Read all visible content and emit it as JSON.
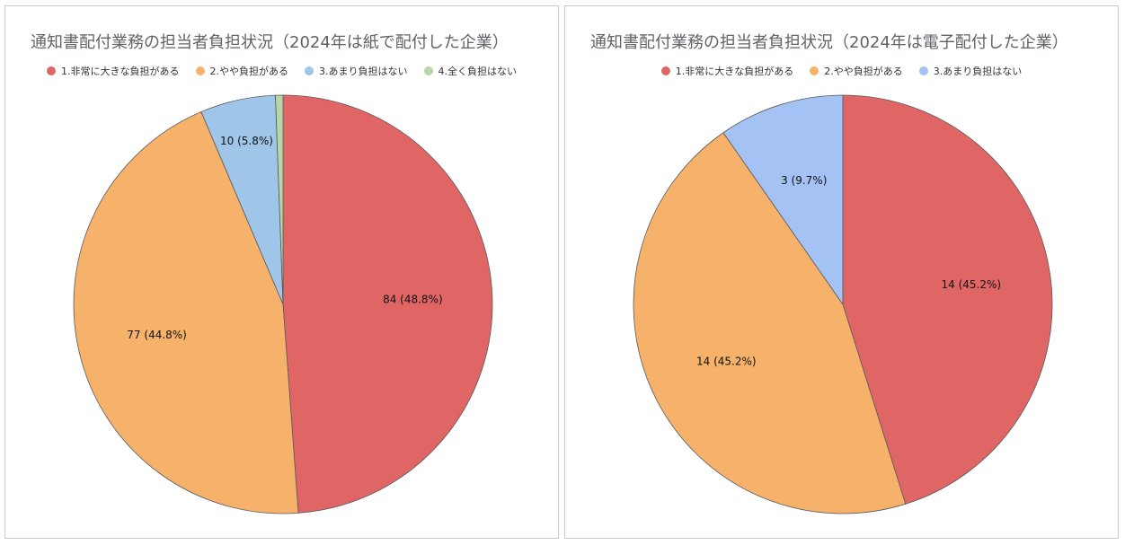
{
  "chart_data": [
    {
      "type": "pie",
      "title": "通知書配付業務の担当者負担状況（2024年は紙で配付した企業）",
      "categories": [
        "1.非常に大きな負担がある",
        "2.やや負担がある",
        "3.あまり負担はない",
        "4.全く負担はない"
      ],
      "values": [
        84,
        77,
        10,
        1
      ],
      "data_labels": [
        "84 (48.8%)",
        "77 (44.8%)",
        "10 (5.8%)",
        ""
      ],
      "colors": [
        "#e06666",
        "#f6b26b",
        "#9fc5e8",
        "#b6d7a8"
      ],
      "legend_position": "top"
    },
    {
      "type": "pie",
      "title": "通知書配付業務の担当者負担状況（2024年は電子配付した企業）",
      "categories": [
        "1.非常に大きな負担がある",
        "2.やや負担がある",
        "3.あまり負担はない"
      ],
      "values": [
        14,
        14,
        3
      ],
      "data_labels": [
        "14 (45.2%)",
        "14 (45.2%)",
        "3 (9.7%)"
      ],
      "colors": [
        "#e06666",
        "#f6b26b",
        "#a4c2f4"
      ],
      "legend_position": "top"
    }
  ]
}
